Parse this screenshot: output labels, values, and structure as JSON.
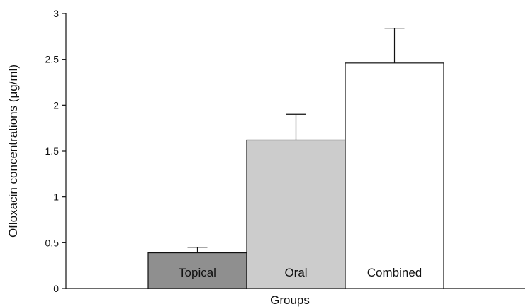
{
  "chart_data": {
    "type": "bar",
    "categories": [
      "Topical",
      "Oral",
      "Combined"
    ],
    "values": [
      0.39,
      1.62,
      2.46
    ],
    "errors": [
      0.06,
      0.28,
      0.38
    ],
    "bar_colors": [
      "#8f8f8f",
      "#cccccc",
      "#ffffff"
    ],
    "ylabel": "Ofloxacin concentrations (μg/ml)",
    "xlabel": "Groups",
    "ylim": [
      0,
      3
    ],
    "yticks": [
      0,
      0.5,
      1,
      1.5,
      2,
      2.5,
      3
    ],
    "ytick_labels": [
      "0",
      "0.5",
      "1",
      "1.5",
      "2",
      "2.5",
      "3"
    ],
    "grid": false,
    "bar_labels_inside": true
  }
}
